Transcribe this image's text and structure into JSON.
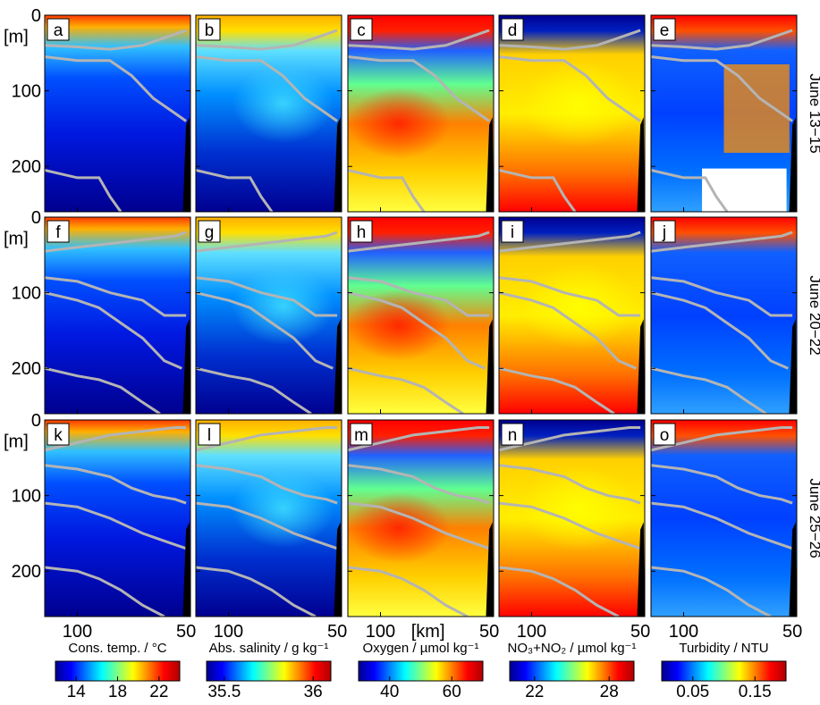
{
  "chart_data": {
    "type": "heatmap",
    "description_axes": {
      "y_axis_unit": "[m]",
      "y_ticks": [
        "0",
        "100",
        "200"
      ],
      "ylim": [
        0,
        260
      ],
      "x_axis_unit": "[km]",
      "x_ticks": [
        "100",
        "50"
      ],
      "xlim": [
        115,
        48
      ]
    },
    "rows": [
      {
        "period": "June 13−15"
      },
      {
        "period": "June 20−22"
      },
      {
        "period": "June 25−26"
      }
    ],
    "variables": [
      {
        "name": "Cons. temp. / °C",
        "cbar_ticks": [
          "14",
          "18",
          "22"
        ],
        "range": [
          12,
          24
        ]
      },
      {
        "name": "Abs. salinity / g kg⁻¹",
        "cbar_ticks": [
          "35.5",
          "36"
        ],
        "range": [
          35.4,
          36.1
        ]
      },
      {
        "name": "Oxygen / µmol kg⁻¹",
        "cbar_ticks": [
          "40",
          "60"
        ],
        "range": [
          30,
          70
        ]
      },
      {
        "name": "NO₃+NO₂ / µmol kg⁻¹",
        "cbar_ticks": [
          "22",
          "28"
        ],
        "range": [
          20,
          30
        ]
      },
      {
        "name": "Turbidity / NTU",
        "cbar_ticks": [
          "0.05",
          "0.15"
        ],
        "range": [
          0.0,
          0.2
        ]
      }
    ],
    "panel_letters": [
      "a",
      "b",
      "c",
      "d",
      "e",
      "f",
      "g",
      "h",
      "i",
      "j",
      "k",
      "l",
      "m",
      "n",
      "o"
    ],
    "colors": {
      "colormap": [
        "#00008f",
        "#0000ff",
        "#0080ff",
        "#00ffff",
        "#80ff80",
        "#ffff00",
        "#ff8000",
        "#ff0000",
        "#b00000"
      ],
      "isopycnal": "#b4b4b4",
      "seafloor": "#000000"
    }
  }
}
